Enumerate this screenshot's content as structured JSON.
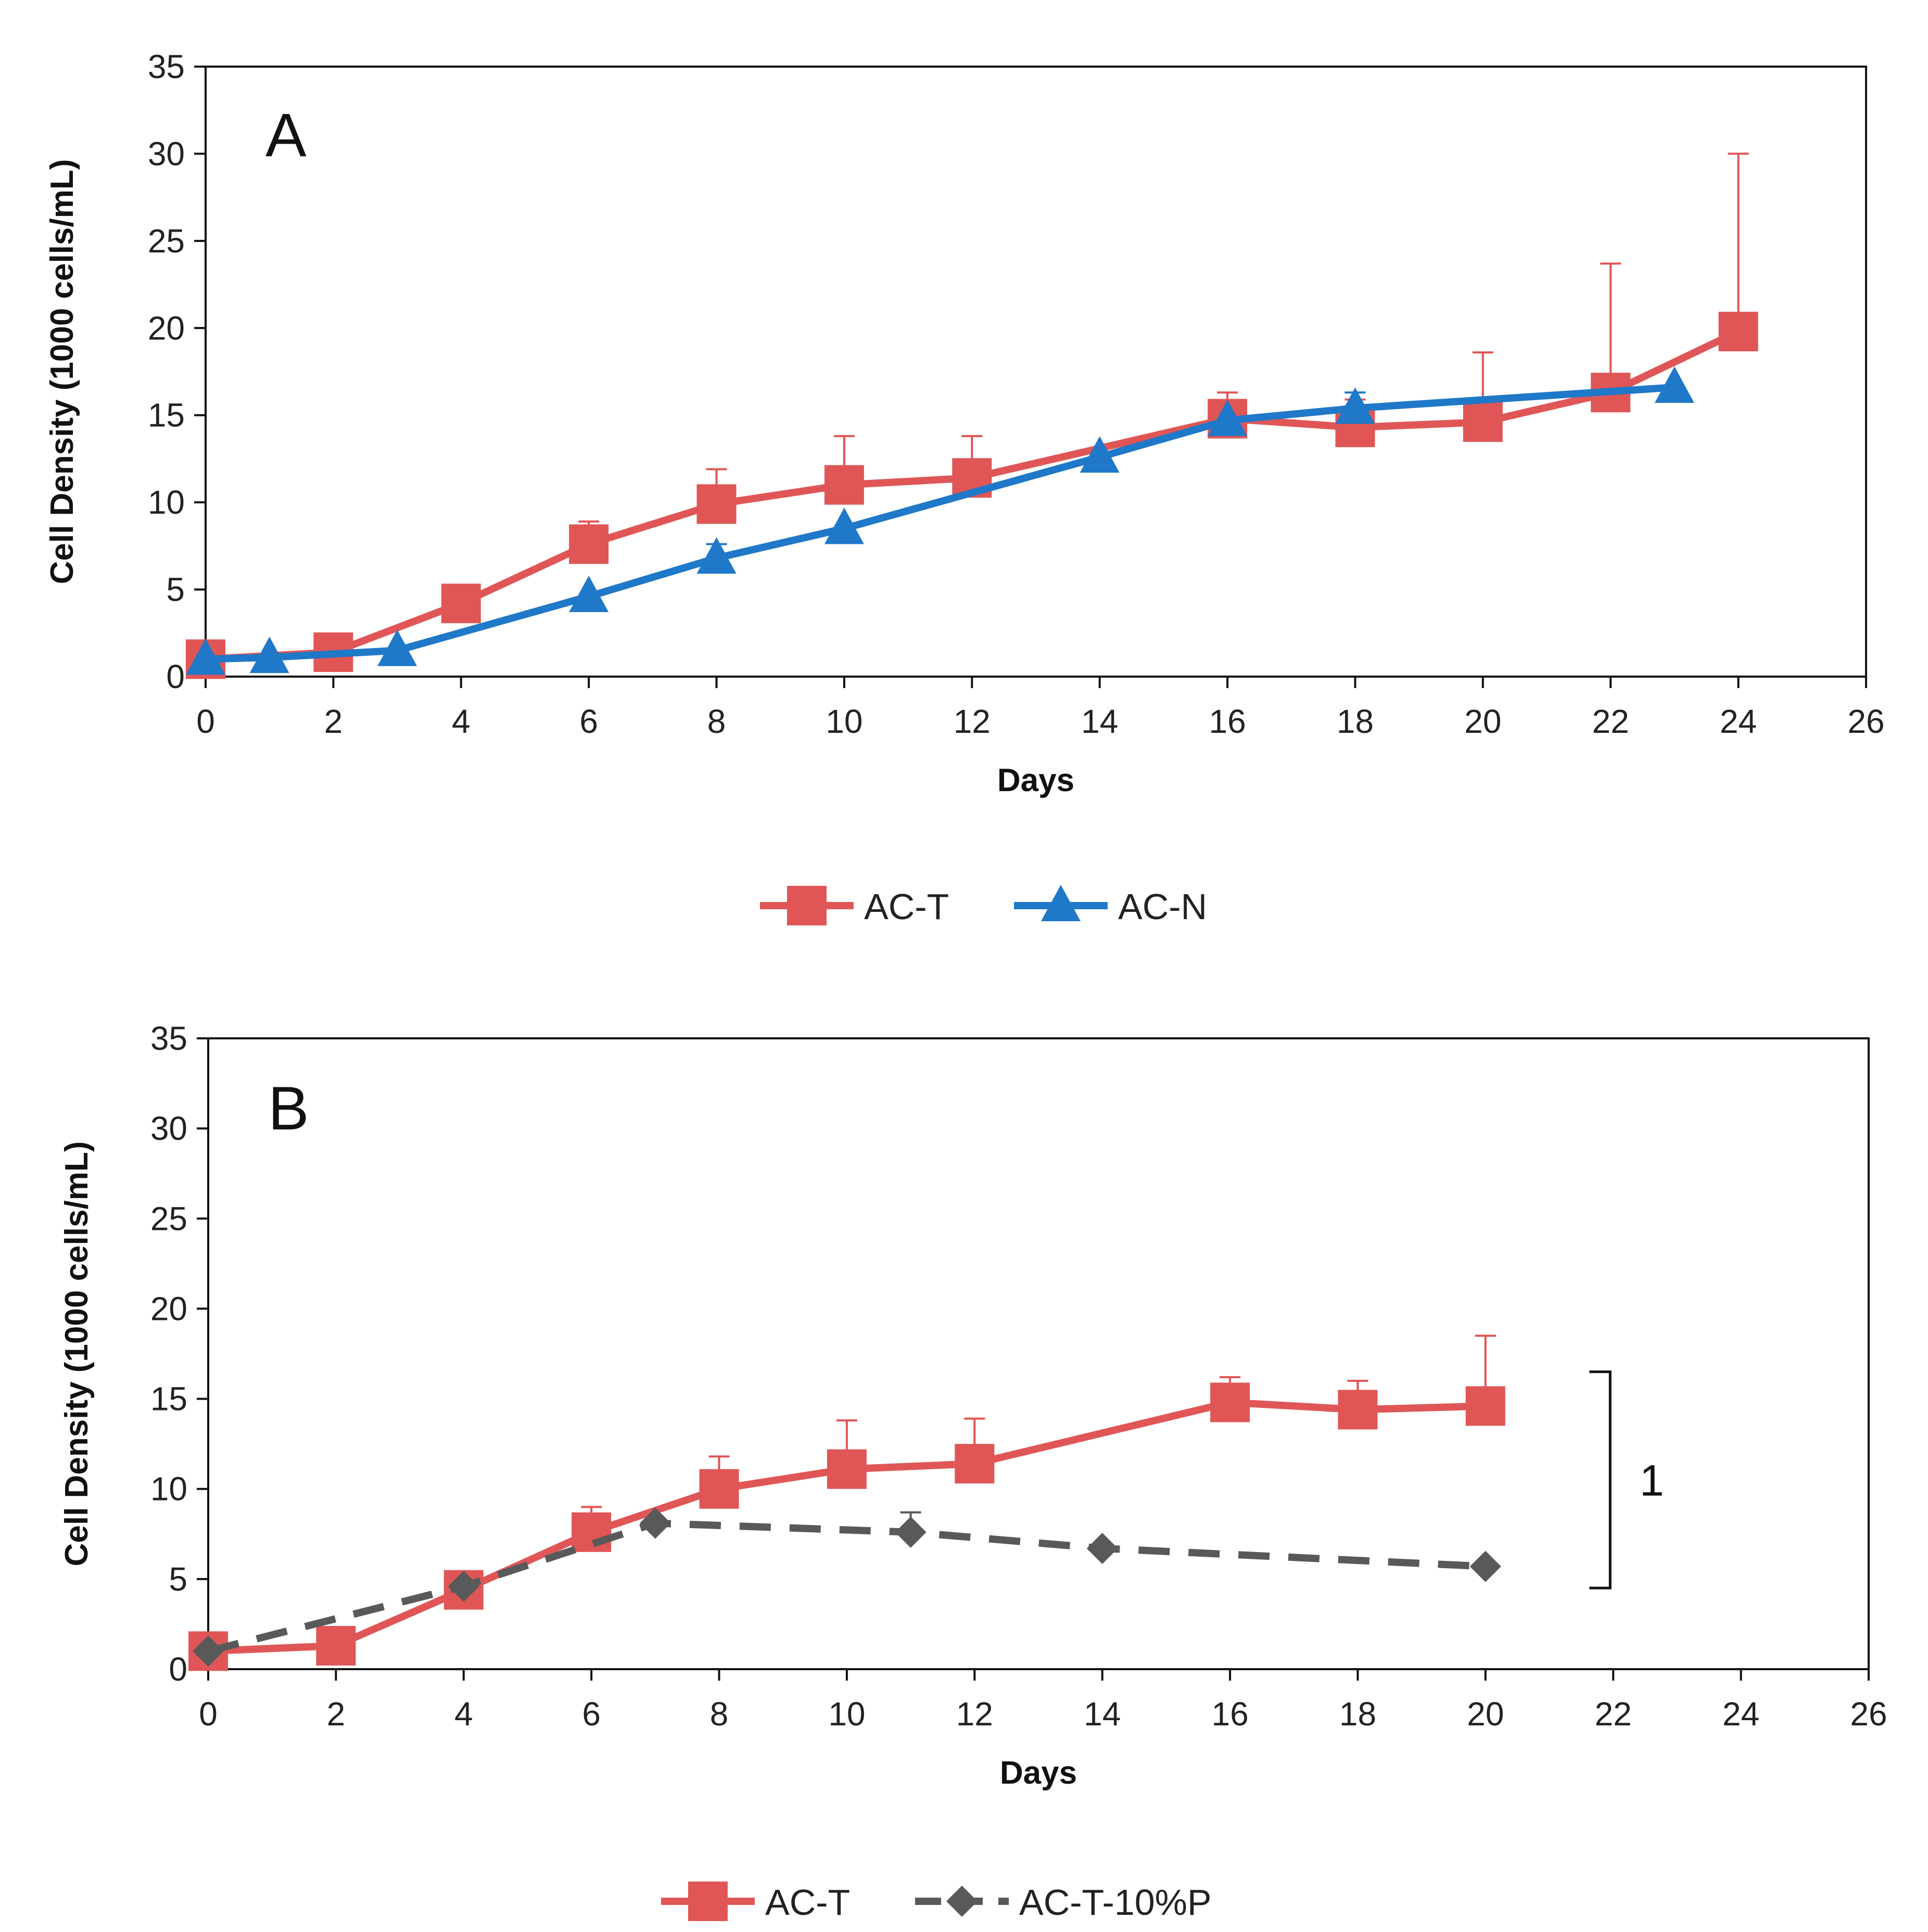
{
  "chart_data": [
    {
      "panel": "A",
      "type": "line",
      "title": "",
      "xlabel": "Days",
      "ylabel": "Cell Density (1000 cells/mL)",
      "xlim": [
        0,
        26
      ],
      "ylim": [
        0,
        35
      ],
      "xticks": [
        0,
        2,
        4,
        6,
        8,
        10,
        12,
        14,
        16,
        18,
        20,
        22,
        24,
        26
      ],
      "yticks": [
        0,
        5,
        10,
        15,
        20,
        25,
        30,
        35
      ],
      "grid": false,
      "legend_position": "bottom",
      "series": [
        {
          "name": "AC-T",
          "color": "#E05656",
          "marker": "square",
          "dash": "solid",
          "x": [
            0,
            2,
            4,
            6,
            8,
            10,
            12,
            16,
            18,
            20,
            22,
            24
          ],
          "y": [
            1.0,
            1.4,
            4.2,
            7.6,
            9.9,
            11.0,
            11.4,
            14.8,
            14.3,
            14.6,
            16.3,
            19.8
          ],
          "error_upper": [
            null,
            null,
            null,
            8.9,
            11.9,
            13.8,
            13.8,
            16.3,
            15.9,
            18.6,
            23.7,
            30.0
          ]
        },
        {
          "name": "AC-N",
          "color": "#1F78C8",
          "marker": "triangle",
          "dash": "solid",
          "x": [
            0,
            1,
            3,
            6,
            8,
            10,
            14,
            16,
            18,
            23
          ],
          "y": [
            1.0,
            1.1,
            1.5,
            4.6,
            6.8,
            8.5,
            12.6,
            14.7,
            15.4,
            16.6
          ],
          "error_upper": [
            null,
            null,
            null,
            null,
            7.6,
            null,
            null,
            null,
            16.3,
            null
          ]
        }
      ]
    },
    {
      "panel": "B",
      "type": "line",
      "title": "",
      "xlabel": "Days",
      "ylabel": "Cell Density (1000 cells/mL)",
      "xlim": [
        0,
        26
      ],
      "ylim": [
        0,
        35
      ],
      "xticks": [
        0,
        2,
        4,
        6,
        8,
        10,
        12,
        14,
        16,
        18,
        20,
        22,
        24,
        26
      ],
      "yticks": [
        0,
        5,
        10,
        15,
        20,
        25,
        30,
        35
      ],
      "grid": false,
      "legend_position": "bottom",
      "annotation": {
        "text": "1",
        "type": "bracket",
        "y_range": [
          4.5,
          16.5
        ],
        "x": 21.3
      },
      "series": [
        {
          "name": "AC-T",
          "color": "#E05656",
          "marker": "square",
          "dash": "solid",
          "x": [
            0,
            2,
            4,
            6,
            8,
            10,
            12,
            16,
            18,
            20
          ],
          "y": [
            1.0,
            1.3,
            4.4,
            7.6,
            10.0,
            11.1,
            11.4,
            14.8,
            14.4,
            14.6
          ],
          "error_upper": [
            null,
            null,
            null,
            9.0,
            11.8,
            13.8,
            13.9,
            16.2,
            16.0,
            18.5
          ]
        },
        {
          "name": "AC-T-10%P",
          "color": "#595959",
          "marker": "diamond",
          "dash": "dashed",
          "x": [
            0,
            4,
            7,
            11,
            14,
            20
          ],
          "y": [
            1.0,
            4.6,
            8.1,
            7.6,
            6.7,
            5.7
          ],
          "error_upper": [
            null,
            null,
            null,
            8.7,
            null,
            null
          ]
        }
      ]
    }
  ]
}
